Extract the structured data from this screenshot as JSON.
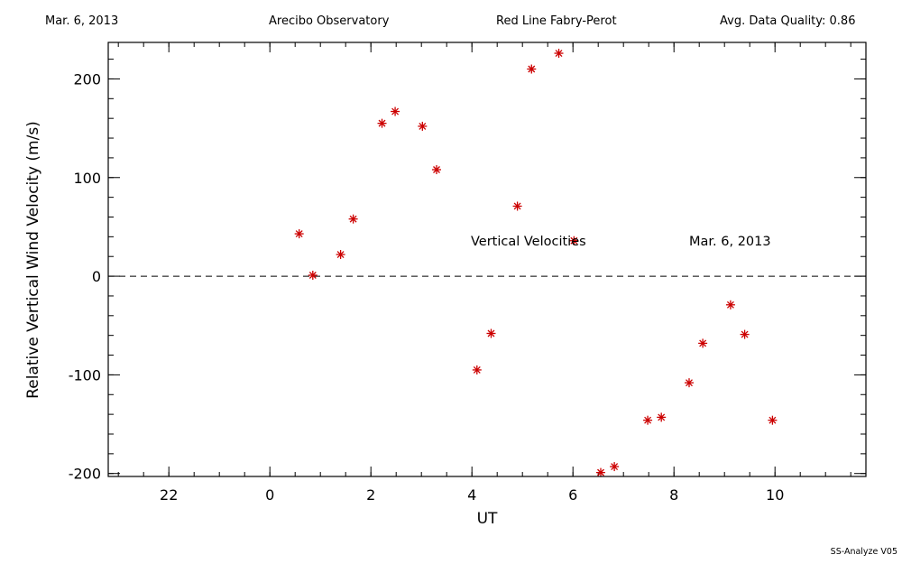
{
  "header": {
    "date": "Mar. 6, 2013",
    "site": "Arecibo Observatory",
    "instrument": "Red Line Fabry-Perot",
    "quality": "Avg. Data Quality: 0.86"
  },
  "footer": {
    "software": "SS-Analyze V05"
  },
  "colors": {
    "points": "#cc0000",
    "axes": "#000000"
  },
  "chart_data": {
    "type": "scatter",
    "xlabel": "UT",
    "ylabel": "Relative Vertical Wind Velocity (m/s)",
    "xlim": [
      -3.2,
      11.8
    ],
    "ylim": [
      -203,
      237
    ],
    "x_ticks": [
      22,
      0,
      2,
      4,
      6,
      8,
      10
    ],
    "y_ticks": [
      200,
      100,
      0,
      -100,
      -200
    ],
    "zero_line": "dashed",
    "annotations": [
      "Vertical Velocities",
      "Mar. 6, 2013"
    ],
    "marker": "asterisk",
    "series": [
      {
        "x": [
          0.58,
          0.85,
          1.4,
          1.65,
          2.22,
          2.48,
          3.02,
          3.3,
          4.1,
          4.38,
          4.9,
          5.18,
          5.72,
          6.02,
          6.55,
          6.82,
          7.48,
          7.75,
          8.3,
          8.57,
          9.12,
          9.4,
          9.95
        ],
        "y": [
          43,
          1,
          22,
          58,
          155,
          167,
          152,
          108,
          -95,
          -58,
          71,
          210,
          226,
          36,
          -199,
          -193,
          -146,
          -143,
          -108,
          -68,
          -29,
          -59,
          -146
        ]
      }
    ]
  }
}
